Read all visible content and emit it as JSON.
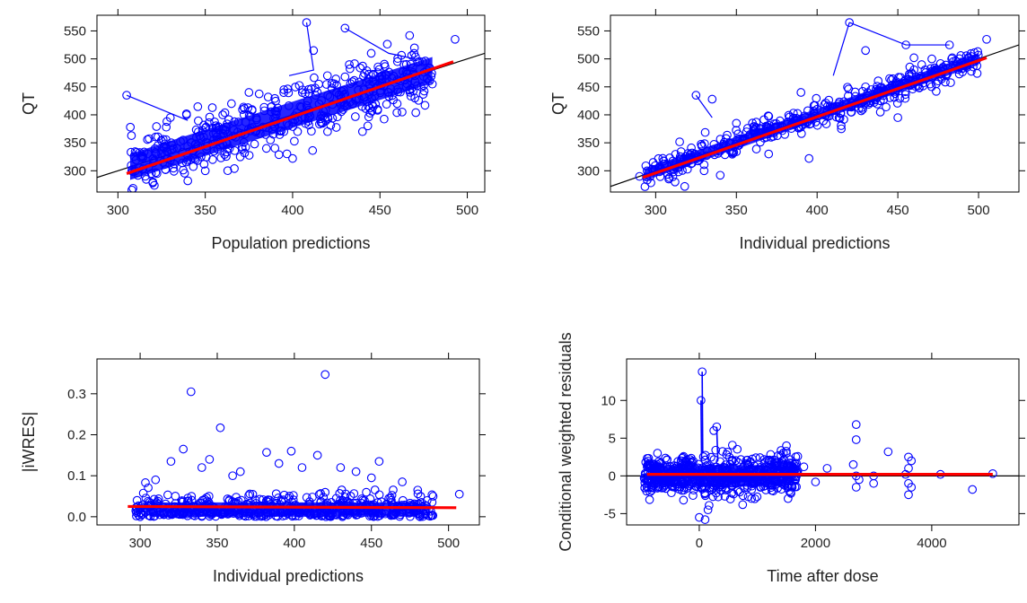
{
  "style": {
    "point_color": "#0000ff",
    "smooth_color": "#ff0000",
    "reference_line_color": "#000000",
    "axis_color": "#000000",
    "background": "#ffffff"
  },
  "chart_data": [
    {
      "type": "scatter",
      "xlabel": "Population predictions",
      "ylabel": "QT",
      "xlim": [
        288,
        510
      ],
      "ylim": [
        262,
        578
      ],
      "xticks": [
        300,
        350,
        400,
        450,
        500
      ],
      "yticks": [
        300,
        350,
        400,
        450,
        500,
        550
      ],
      "reference_line": {
        "type": "identity"
      },
      "smooth_line": [
        [
          305,
          295
        ],
        [
          492,
          495
        ]
      ],
      "points": [
        [
          305,
          435
        ],
        [
          330,
          395
        ],
        [
          360,
          400
        ],
        [
          408,
          565
        ],
        [
          412,
          515
        ],
        [
          430,
          555
        ],
        [
          445,
          510
        ],
        [
          493,
          535
        ],
        [
          400,
          322
        ],
        [
          340,
          282
        ],
        [
          320,
          280
        ],
        [
          470,
          470
        ],
        [
          430,
          468
        ],
        [
          460,
          495
        ],
        [
          480,
          455
        ],
        [
          350,
          300
        ],
        [
          375,
          440
        ],
        [
          420,
          370
        ],
        [
          440,
          370
        ],
        [
          385,
          340
        ],
        [
          310,
          300
        ],
        [
          325,
          330
        ],
        [
          365,
          420
        ],
        [
          395,
          445
        ],
        [
          415,
          455
        ],
        [
          455,
          440
        ],
        [
          470,
          430
        ],
        [
          345,
          360
        ],
        [
          355,
          335
        ],
        [
          395,
          370
        ]
      ],
      "cloud": {
        "x_range": [
          307,
          480
        ],
        "spread": 26,
        "count": 450,
        "y_mean": "identity"
      }
    },
    {
      "type": "scatter",
      "xlabel": "Individual predictions",
      "ylabel": "QT",
      "xlim": [
        272,
        525
      ],
      "ylim": [
        262,
        578
      ],
      "xticks": [
        300,
        350,
        400,
        450,
        500
      ],
      "yticks": [
        300,
        350,
        400,
        450,
        500,
        550
      ],
      "reference_line": {
        "type": "identity"
      },
      "smooth_line": [
        [
          292,
          288
        ],
        [
          505,
          502
        ]
      ],
      "points": [
        [
          290,
          290
        ],
        [
          325,
          435
        ],
        [
          335,
          428
        ],
        [
          420,
          565
        ],
        [
          430,
          515
        ],
        [
          455,
          525
        ],
        [
          482,
          525
        ],
        [
          505,
          535
        ],
        [
          340,
          292
        ],
        [
          312,
          280
        ],
        [
          318,
          272
        ],
        [
          395,
          322
        ],
        [
          450,
          395
        ],
        [
          480,
          470
        ],
        [
          460,
          502
        ],
        [
          370,
          330
        ],
        [
          390,
          440
        ],
        [
          415,
          375
        ],
        [
          350,
          385
        ],
        [
          430,
          450
        ],
        [
          330,
          300
        ],
        [
          470,
          455
        ],
        [
          380,
          365
        ],
        [
          400,
          410
        ]
      ],
      "cloud": {
        "x_range": [
          293,
          500
        ],
        "spread": 12,
        "count": 450,
        "y_mean": "identity"
      }
    },
    {
      "type": "scatter",
      "xlabel": "Individual predictions",
      "ylabel": "|iWRES|",
      "xlim": [
        272,
        520
      ],
      "ylim": [
        -0.02,
        0.385
      ],
      "xticks": [
        300,
        350,
        400,
        450,
        500
      ],
      "yticks": [
        0.0,
        0.1,
        0.2,
        0.3
      ],
      "ytick_labels": [
        "0.0",
        "0.1",
        "0.2",
        "0.3"
      ],
      "reference_line": null,
      "smooth_line": [
        [
          292,
          0.025
        ],
        [
          505,
          0.022
        ]
      ],
      "points": [
        [
          333,
          0.305
        ],
        [
          352,
          0.217
        ],
        [
          420,
          0.347
        ],
        [
          328,
          0.165
        ],
        [
          345,
          0.14
        ],
        [
          382,
          0.157
        ],
        [
          398,
          0.16
        ],
        [
          415,
          0.15
        ],
        [
          455,
          0.135
        ],
        [
          507,
          0.055
        ],
        [
          320,
          0.135
        ],
        [
          340,
          0.12
        ],
        [
          365,
          0.11
        ],
        [
          390,
          0.13
        ],
        [
          430,
          0.12
        ],
        [
          470,
          0.085
        ],
        [
          480,
          0.065
        ],
        [
          490,
          0.05
        ],
        [
          298,
          0.04
        ],
        [
          300,
          0.0
        ],
        [
          310,
          0.09
        ],
        [
          360,
          0.1
        ],
        [
          440,
          0.11
        ],
        [
          450,
          0.095
        ],
        [
          405,
          0.12
        ]
      ],
      "cloud": {
        "x_range": [
          297,
          490
        ],
        "spread": 0.025,
        "count": 550,
        "y_mean": "half-normal"
      }
    },
    {
      "type": "scatter",
      "xlabel": "Time after dose",
      "ylabel": "Conditional weighted residuals",
      "xlim": [
        -1250,
        5500
      ],
      "ylim": [
        -6.5,
        15.5
      ],
      "xticks": [
        0,
        2000,
        4000
      ],
      "yticks": [
        -5,
        0,
        5,
        10
      ],
      "reference_line": {
        "type": "horizontal",
        "y": 0
      },
      "smooth_line": [
        [
          -900,
          0.2
        ],
        [
          5050,
          0.2
        ]
      ],
      "points": [
        [
          50,
          13.8
        ],
        [
          30,
          10.0
        ],
        [
          300,
          6.5
        ],
        [
          250,
          6.0
        ],
        [
          2700,
          6.8
        ],
        [
          2700,
          4.8
        ],
        [
          1500,
          4.0
        ],
        [
          1500,
          3.0
        ],
        [
          3250,
          3.2
        ],
        [
          3600,
          2.5
        ],
        [
          3650,
          2.0
        ],
        [
          4150,
          0.2
        ],
        [
          4700,
          -1.8
        ],
        [
          5050,
          0.3
        ],
        [
          3000,
          -1.0
        ],
        [
          2200,
          1.0
        ],
        [
          2000,
          -0.8
        ],
        [
          1800,
          1.2
        ],
        [
          1200,
          2.0
        ],
        [
          900,
          -3.0
        ],
        [
          0,
          -5.5
        ],
        [
          100,
          -5.8
        ],
        [
          150,
          -4.5
        ],
        [
          -800,
          1.5
        ],
        [
          -900,
          -1.5
        ],
        [
          2700,
          -1.5
        ],
        [
          3600,
          -2.5
        ],
        [
          3600,
          -1.0
        ],
        [
          3600,
          1.0
        ],
        [
          2700,
          0.0
        ],
        [
          2650,
          1.5
        ],
        [
          2750,
          -0.5
        ],
        [
          3550,
          0.2
        ],
        [
          3650,
          -1.5
        ],
        [
          3000,
          0.0
        ],
        [
          1600,
          -1.5
        ]
      ],
      "cloud": {
        "x_range": [
          -950,
          1700
        ],
        "spread": 1.3,
        "count": 650,
        "y_mean": "zero"
      }
    }
  ]
}
